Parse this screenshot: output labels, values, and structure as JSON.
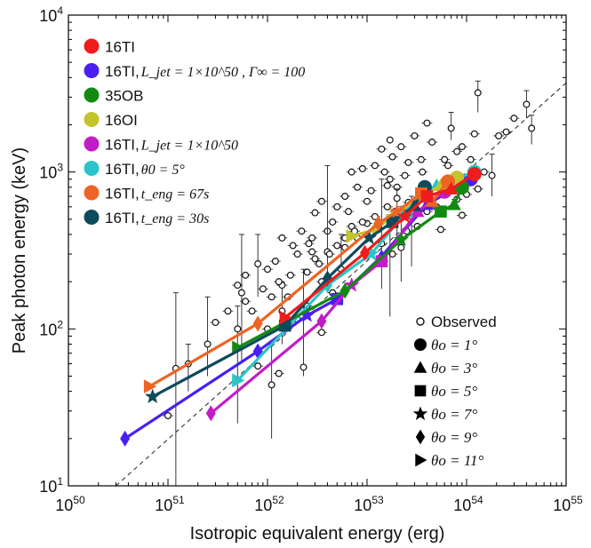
{
  "chart_data": {
    "type": "scatter",
    "xscale": "log",
    "yscale": "log",
    "xlim": [
      1e+50,
      1e+55
    ],
    "ylim": [
      10,
      10000
    ],
    "xlabel": "Isotropic equivalent energy (erg)",
    "ylabel": "Peak photon energy (keV)",
    "x_tick_labels": [
      {
        "base": "10",
        "exp": "50",
        "value": 1e+50
      },
      {
        "base": "10",
        "exp": "51",
        "value": 1e+51
      },
      {
        "base": "10",
        "exp": "52",
        "value": 1e+52
      },
      {
        "base": "10",
        "exp": "53",
        "value": 1e+53
      },
      {
        "base": "10",
        "exp": "54",
        "value": 1e+54
      },
      {
        "base": "10",
        "exp": "55",
        "value": 1e+55
      }
    ],
    "y_tick_labels": [
      {
        "base": "10",
        "exp": "1",
        "value": 10
      },
      {
        "base": "10",
        "exp": "2",
        "value": 100
      },
      {
        "base": "10",
        "exp": "3",
        "value": 1000
      },
      {
        "base": "10",
        "exp": "4",
        "value": 10000
      }
    ],
    "grid": false,
    "reference_line": {
      "style": "dashed",
      "color": "#333333",
      "points": [
        [
          3e+50,
          10
        ],
        [
          1e+55,
          3700
        ]
      ]
    },
    "legend_series": {
      "placement": "top-left",
      "entries": [
        {
          "id": "s16TI",
          "color": "#ee1c1c",
          "label": "16TI",
          "math": ""
        },
        {
          "id": "s16TI_L100",
          "color": "#4a1ff2",
          "label": "16TI, ",
          "math": "L_jet = 1×10^50 , Γ∞ = 100"
        },
        {
          "id": "s35OB",
          "color": "#128a12",
          "label": "35OB",
          "math": ""
        },
        {
          "id": "s16OI",
          "color": "#c3c32e",
          "label": "16OI",
          "math": ""
        },
        {
          "id": "s16TI_L",
          "color": "#c21cc8",
          "label": "16TI, ",
          "math": "L_jet = 1×10^50"
        },
        {
          "id": "s16TI_th5",
          "color": "#2ac4c8",
          "label": "16TI, ",
          "math": "θ0 = 5°"
        },
        {
          "id": "s16TI_t67",
          "color": "#ee6424",
          "label": "16TI, ",
          "math": "t_eng = 67s"
        },
        {
          "id": "s16TI_t30",
          "color": "#0d4a5c",
          "label": "16TI, ",
          "math": "t_eng = 30s"
        }
      ]
    },
    "legend_markers": {
      "placement": "bottom-right",
      "observed_label": "Observed",
      "entries": [
        {
          "marker": "circle",
          "label": "θo = 1°"
        },
        {
          "marker": "triangle",
          "label": "θo = 3°"
        },
        {
          "marker": "square",
          "label": "θo = 5°"
        },
        {
          "marker": "star",
          "label": "θo = 7°"
        },
        {
          "marker": "diamond",
          "label": "θo = 9°"
        },
        {
          "marker": "right-triangle",
          "label": "θo = 11°"
        }
      ]
    },
    "series": [
      {
        "id": "s16TI_L100",
        "color": "#4a1ff2",
        "points": [
          [
            1.1e+54,
            900,
            "circle"
          ],
          [
            4e+53,
            620,
            "triangle"
          ],
          [
            1.4e+53,
            290,
            "triangle"
          ],
          [
            5e+52,
            155,
            "square"
          ],
          [
            2.5e+52,
            122,
            "star"
          ],
          [
            8e+51,
            72,
            "diamond"
          ],
          [
            3.7e+50,
            20,
            "diamond"
          ]
        ]
      },
      {
        "id": "s16TI_L",
        "color": "#c21cc8",
        "points": [
          [
            6e+53,
            750,
            "circle"
          ],
          [
            3.2e+53,
            560,
            "triangle"
          ],
          [
            1.4e+53,
            270,
            "square"
          ],
          [
            7e+52,
            190,
            "star"
          ],
          [
            3.5e+52,
            112,
            "diamond"
          ],
          [
            2.7e+51,
            29,
            "diamond"
          ]
        ]
      },
      {
        "id": "s16TI_th5",
        "color": "#2ac4c8",
        "points": [
          [
            1.2e+54,
            1000,
            "circle"
          ],
          [
            5e+53,
            820,
            "triangle"
          ],
          [
            2.5e+53,
            560,
            "square"
          ],
          [
            1.1e+53,
            300,
            "star"
          ],
          [
            4e+52,
            190,
            "diamond"
          ],
          [
            5e+51,
            47,
            "right-triangle"
          ]
        ]
      },
      {
        "id": "s35OB",
        "color": "#128a12",
        "points": [
          [
            9e+53,
            800,
            "circle"
          ],
          [
            7.5e+53,
            620,
            "triangle"
          ],
          [
            5.5e+53,
            560,
            "square"
          ],
          [
            2.2e+53,
            370,
            "star"
          ],
          [
            6e+52,
            175,
            "diamond"
          ],
          [
            5e+51,
            76,
            "right-triangle"
          ]
        ]
      },
      {
        "id": "s16OI",
        "color": "#c3c32e",
        "points": [
          [
            8e+53,
            920,
            "circle"
          ],
          [
            5.5e+53,
            820,
            "triangle"
          ],
          [
            3.5e+53,
            700,
            "square"
          ],
          [
            1.8e+53,
            520,
            "star"
          ],
          [
            1.2e+53,
            430,
            "diamond"
          ],
          [
            7e+52,
            390,
            "right-triangle"
          ]
        ]
      },
      {
        "id": "s16TI_t30",
        "color": "#0d4a5c",
        "points": [
          [
            3.8e+53,
            800,
            "circle"
          ],
          [
            3e+53,
            610,
            "triangle"
          ],
          [
            1.8e+53,
            480,
            "square"
          ],
          [
            1.05e+53,
            380,
            "star"
          ],
          [
            4e+52,
            210,
            "diamond"
          ],
          [
            1.5e+52,
            105,
            "square"
          ],
          [
            7e+50,
            37,
            "star"
          ]
        ]
      },
      {
        "id": "s16TI_t67",
        "color": "#ee6424",
        "points": [
          [
            6.5e+53,
            870,
            "circle"
          ],
          [
            4.5e+53,
            650,
            "triangle"
          ],
          [
            3.5e+53,
            730,
            "square"
          ],
          [
            2e+53,
            560,
            "star"
          ],
          [
            1.3e+53,
            470,
            "diamond"
          ],
          [
            8e+51,
            108,
            "diamond"
          ],
          [
            6.5e+50,
            43,
            "right-triangle"
          ]
        ]
      },
      {
        "id": "s16TI",
        "color": "#ee1c1c",
        "points": [
          [
            1.2e+54,
            970,
            "circle"
          ],
          [
            7e+53,
            780,
            "triangle"
          ],
          [
            4e+53,
            700,
            "square"
          ],
          [
            2.4e+53,
            520,
            "star"
          ],
          [
            9.5e+52,
            305,
            "diamond"
          ],
          [
            1.5e+52,
            118,
            "right-triangle"
          ]
        ]
      }
    ],
    "observed": [
      [
        4e+54,
        2700
      ],
      [
        4.5e+54,
        1900
      ],
      [
        3e+54,
        2200
      ],
      [
        2.5e+54,
        1800
      ],
      [
        2.1e+54,
        1700
      ],
      [
        1.3e+54,
        3200
      ],
      [
        1.2e+54,
        1750
      ],
      [
        1.8e+54,
        950
      ],
      [
        9e+53,
        1450
      ],
      [
        6e+53,
        1200
      ],
      [
        7e+53,
        1900
      ],
      [
        4e+53,
        2050
      ],
      [
        4.5e+53,
        1550
      ],
      [
        3e+53,
        1700
      ],
      [
        3.5e+53,
        1200
      ],
      [
        2.6e+53,
        1150
      ],
      [
        2.2e+53,
        1450
      ],
      [
        1.8e+53,
        1250
      ],
      [
        1.5e+53,
        1000
      ],
      [
        1.2e+53,
        1100
      ],
      [
        9e+52,
        1050
      ],
      [
        7e+52,
        1000
      ],
      [
        8e+52,
        800
      ],
      [
        6e+52,
        700
      ],
      [
        1.7e+53,
        900
      ],
      [
        2e+53,
        800
      ],
      [
        1.1e+53,
        760
      ],
      [
        5e+52,
        600
      ],
      [
        4.5e+52,
        480
      ],
      [
        4e+52,
        420
      ],
      [
        3.5e+52,
        650
      ],
      [
        3e+52,
        550
      ],
      [
        2.8e+52,
        380
      ],
      [
        2.2e+52,
        420
      ],
      [
        1.8e+52,
        340
      ],
      [
        1.4e+52,
        380
      ],
      [
        1.2e+52,
        270
      ],
      [
        1e+52,
        240
      ],
      [
        8e+51,
        260
      ],
      [
        6e+51,
        220
      ],
      [
        7e+51,
        130
      ],
      [
        6e+51,
        150
      ],
      [
        5.5e+51,
        170
      ],
      [
        5e+51,
        190
      ],
      [
        4e+51,
        130
      ],
      [
        3e+51,
        110
      ],
      [
        5e+51,
        100
      ],
      [
        8e+51,
        58
      ],
      [
        2.5e+51,
        80
      ],
      [
        1.6e+51,
        60
      ],
      [
        1.2e+51,
        56
      ],
      [
        1e+51,
        28
      ],
      [
        1.1e+52,
        44
      ],
      [
        1.3e+52,
        52
      ],
      [
        2.3e+52,
        57
      ],
      [
        3.5e+52,
        95
      ],
      [
        2e+52,
        115
      ],
      [
        1.4e+52,
        130
      ],
      [
        1e+52,
        100
      ],
      [
        9e+51,
        180
      ],
      [
        2.5e+52,
        230
      ],
      [
        3e+52,
        280
      ],
      [
        4e+52,
        310
      ],
      [
        6e+52,
        330
      ],
      [
        7e+52,
        450
      ],
      [
        8e+52,
        380
      ],
      [
        1e+53,
        470
      ],
      [
        1.2e+53,
        520
      ],
      [
        1.6e+53,
        600
      ],
      [
        1.4e+53,
        350
      ],
      [
        1.8e+53,
        300
      ],
      [
        2.2e+53,
        330
      ],
      [
        2.5e+53,
        420
      ],
      [
        2.8e+53,
        520
      ],
      [
        3.2e+53,
        450
      ],
      [
        4e+53,
        560
      ],
      [
        5e+53,
        600
      ],
      [
        5.5e+53,
        430
      ],
      [
        6e+53,
        780
      ],
      [
        7e+53,
        900
      ],
      [
        8e+53,
        670
      ],
      [
        1e+54,
        720
      ],
      [
        1.5e+54,
        1000
      ],
      [
        9e+53,
        530
      ],
      [
        2e+53,
        680
      ],
      [
        1.7e+53,
        1600
      ],
      [
        1.4e+53,
        1400
      ],
      [
        1e+53,
        650
      ],
      [
        6.5e+52,
        560
      ],
      [
        5.5e+52,
        240
      ],
      [
        4.5e+52,
        170
      ],
      [
        3.5e+52,
        200
      ],
      [
        2.5e+52,
        140
      ],
      [
        1.6e+52,
        160
      ],
      [
        1.4e+52,
        190
      ],
      [
        2.8e+52,
        310
      ],
      [
        1.6e+53,
        820
      ],
      [
        2.4e+53,
        950
      ],
      [
        3.6e+53,
        1000
      ],
      [
        6.5e+53,
        1100
      ],
      [
        8e+53,
        1350
      ],
      [
        1.1e+54,
        1200
      ],
      [
        1.3e+54,
        780
      ],
      [
        4.8e+53,
        700
      ],
      [
        2.6e+53,
        640
      ],
      [
        1.9e+53,
        560
      ],
      [
        1.3e+53,
        430
      ],
      [
        9e+52,
        480
      ],
      [
        7.5e+52,
        420
      ],
      [
        6e+52,
        380
      ],
      [
        5e+52,
        340
      ],
      [
        4.2e+52,
        300
      ],
      [
        3.3e+52,
        260
      ],
      [
        1.7e+52,
        220
      ],
      [
        1.1e+52,
        160
      ],
      [
        1.3e+52,
        200
      ],
      [
        2e+52,
        300
      ],
      [
        2.6e+52,
        350
      ]
    ],
    "observed_error_bars": [
      {
        "i": 0,
        "lo": 2200,
        "hi": 3300
      },
      {
        "i": 1,
        "lo": 1500,
        "hi": 2300
      },
      {
        "i": 5,
        "lo": 2400,
        "hi": 3800
      },
      {
        "i": 7,
        "lo": 700,
        "hi": 1300
      },
      {
        "i": 10,
        "lo": 1600,
        "hi": 2400
      },
      {
        "i": 46,
        "lo": 25,
        "hi": 140
      },
      {
        "i": 48,
        "lo": 50,
        "hi": 160
      },
      {
        "i": 49,
        "lo": 40,
        "hi": 80
      },
      {
        "i": 50,
        "lo": 10,
        "hi": 170
      },
      {
        "i": 52,
        "lo": 20,
        "hi": 80
      },
      {
        "i": 57,
        "lo": 80,
        "hi": 200
      },
      {
        "i": 54,
        "lo": 50,
        "hi": 240
      },
      {
        "i": 69,
        "lo": 180,
        "hi": 900
      },
      {
        "i": 71,
        "lo": 200,
        "hi": 600
      },
      {
        "i": 84,
        "lo": 350,
        "hi": 780
      },
      {
        "i": 85,
        "lo": 120,
        "hi": 500
      },
      {
        "i": 89,
        "lo": 230,
        "hi": 400
      },
      {
        "i": 38,
        "lo": 160,
        "hi": 400
      },
      {
        "i": 42,
        "lo": 60,
        "hi": 400
      },
      {
        "i": 62,
        "lo": 200,
        "hi": 1100
      },
      {
        "i": 73,
        "lo": 250,
        "hi": 700
      }
    ]
  }
}
